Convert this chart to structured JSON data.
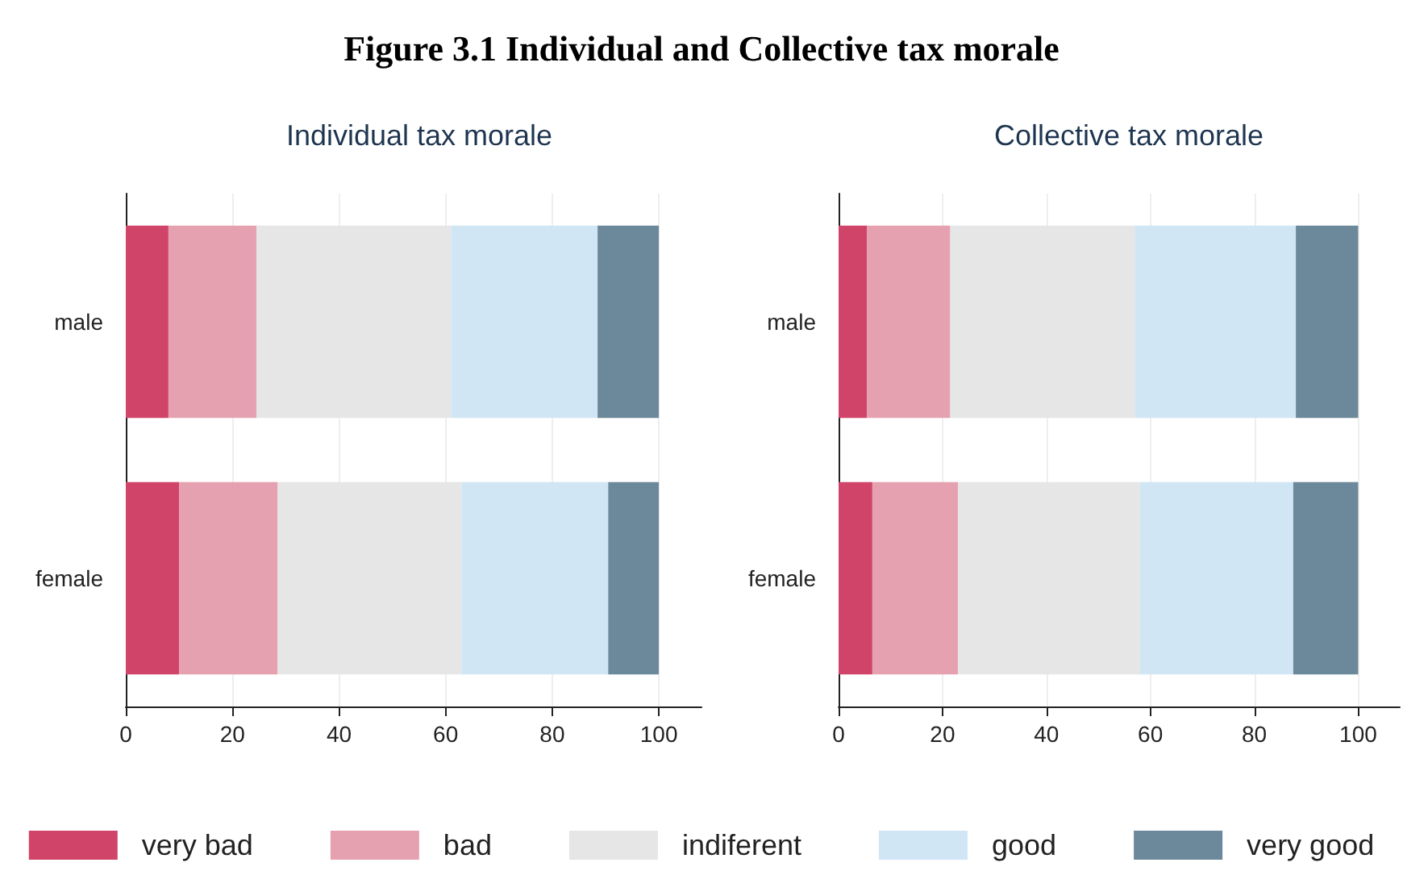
{
  "chart_data": [
    {
      "type": "bar",
      "title": "Figure 3.1 Individual and Collective tax morale",
      "subtitle": "Individual tax morale",
      "orientation": "horizontal",
      "stacked": true,
      "categories": [
        "male",
        "female"
      ],
      "series": [
        {
          "name": "very bad",
          "color": "#d14469",
          "values": [
            8,
            10
          ]
        },
        {
          "name": "bad",
          "color": "#e6a1b1",
          "values": [
            16.5,
            18.5
          ]
        },
        {
          "name": "indiferent",
          "color": "#e6e6e6",
          "values": [
            36.5,
            34.5
          ]
        },
        {
          "name": "good",
          "color": "#d0e6f4",
          "values": [
            27.5,
            27.5
          ]
        },
        {
          "name": "very good",
          "color": "#6c899b",
          "values": [
            11.5,
            9.5
          ]
        }
      ],
      "xlim": [
        0,
        108
      ],
      "xticks": [
        0,
        20,
        40,
        60,
        80,
        100
      ],
      "grid": "x",
      "legend": "bottom"
    },
    {
      "type": "bar",
      "title": "Collective tax morale",
      "orientation": "horizontal",
      "stacked": true,
      "categories": [
        "male",
        "female"
      ],
      "series": [
        {
          "color": "#d14469",
          "values": [
            5.5,
            6.5
          ]
        },
        {
          "color": "#e6a1b1",
          "values": [
            16,
            16.5
          ]
        },
        {
          "color": "#e6e6e6",
          "values": [
            35.5,
            35
          ]
        },
        {
          "color": "#d0e6f4",
          "values": [
            31,
            29.5
          ]
        },
        {
          "color": "#6c899b",
          "values": [
            12,
            12.5
          ]
        }
      ],
      "xlim": [
        0,
        108
      ],
      "xticks": [
        0,
        20,
        40,
        60,
        80,
        100
      ],
      "grid": "x"
    }
  ]
}
